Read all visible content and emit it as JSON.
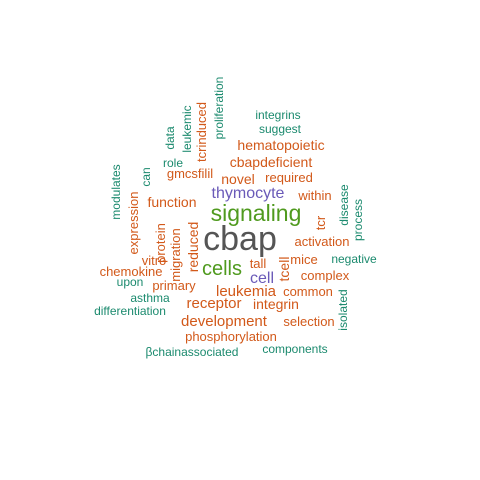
{
  "colors": {
    "gray": "#555555",
    "green": "#4f9a1e",
    "purple": "#6a5ab8",
    "orange": "#d2591a",
    "teal": "#1b8a6e"
  },
  "words": [
    {
      "text": "cbap",
      "color": "gray"
    },
    {
      "text": "signaling",
      "color": "green"
    },
    {
      "text": "cells",
      "color": "green"
    },
    {
      "text": "thymocyte",
      "color": "purple"
    },
    {
      "text": "cell",
      "color": "purple"
    },
    {
      "text": "hematopoietic",
      "color": "orange"
    },
    {
      "text": "cbapdeficient",
      "color": "orange"
    },
    {
      "text": "novel",
      "color": "orange"
    },
    {
      "text": "required",
      "color": "orange"
    },
    {
      "text": "function",
      "color": "orange"
    },
    {
      "text": "gmcsfilil",
      "color": "orange"
    },
    {
      "text": "within",
      "color": "orange"
    },
    {
      "text": "activation",
      "color": "orange"
    },
    {
      "text": "reduced",
      "color": "orange"
    },
    {
      "text": "expression",
      "color": "orange"
    },
    {
      "text": "protein",
      "color": "orange"
    },
    {
      "text": "migration",
      "color": "orange"
    },
    {
      "text": "chemokine",
      "color": "orange"
    },
    {
      "text": "vitro",
      "color": "orange"
    },
    {
      "text": "tall",
      "color": "orange"
    },
    {
      "text": "mice",
      "color": "orange"
    },
    {
      "text": "tcell",
      "color": "orange"
    },
    {
      "text": "complex",
      "color": "orange"
    },
    {
      "text": "leukemia",
      "color": "orange"
    },
    {
      "text": "common",
      "color": "orange"
    },
    {
      "text": "primary",
      "color": "orange"
    },
    {
      "text": "receptor",
      "color": "orange"
    },
    {
      "text": "integrin",
      "color": "orange"
    },
    {
      "text": "development",
      "color": "orange"
    },
    {
      "text": "selection",
      "color": "orange"
    },
    {
      "text": "phosphorylation",
      "color": "orange"
    },
    {
      "text": "tcr",
      "color": "orange"
    },
    {
      "text": "tcrinduced",
      "color": "orange"
    },
    {
      "text": "integrins",
      "color": "teal"
    },
    {
      "text": "suggest",
      "color": "teal"
    },
    {
      "text": "proliferation",
      "color": "teal"
    },
    {
      "text": "leukemic",
      "color": "teal"
    },
    {
      "text": "data",
      "color": "teal"
    },
    {
      "text": "role",
      "color": "teal"
    },
    {
      "text": "can",
      "color": "teal"
    },
    {
      "text": "modulates",
      "color": "teal"
    },
    {
      "text": "disease",
      "color": "teal"
    },
    {
      "text": "process",
      "color": "teal"
    },
    {
      "text": "negative",
      "color": "teal"
    },
    {
      "text": "upon",
      "color": "teal"
    },
    {
      "text": "asthma",
      "color": "teal"
    },
    {
      "text": "differentiation",
      "color": "teal"
    },
    {
      "text": "isolated",
      "color": "teal"
    },
    {
      "text": "components",
      "color": "teal"
    },
    {
      "text": "βchainassociated",
      "color": "teal"
    }
  ]
}
